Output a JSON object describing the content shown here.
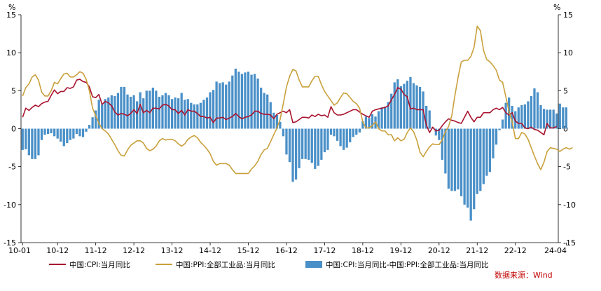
{
  "chart_data": {
    "type": "bar+line",
    "unit_left": "%",
    "unit_right": "%",
    "ylim": [
      -15,
      15
    ],
    "y_ticks": [
      15,
      10,
      5,
      0,
      -5,
      -10,
      -15
    ],
    "x_tick_labels": [
      "10-01",
      "10-12",
      "11-12",
      "12-12",
      "13-12",
      "14-12",
      "15-12",
      "16-12",
      "17-12",
      "18-12",
      "19-12",
      "20-12",
      "21-12",
      "22-12",
      "24-04"
    ],
    "x_tick_positions": [
      0,
      11,
      23,
      35,
      47,
      59,
      71,
      83,
      95,
      107,
      119,
      131,
      143,
      155,
      171
    ],
    "x_start": "2010-01",
    "x_end": "2024-04",
    "grid": false,
    "legend_position": "bottom",
    "source_note": "数据来源：Wind",
    "colors": {
      "cpi": "#A8132E",
      "ppi": "#C9A03C",
      "diff": "#4A90C8",
      "source": "#C00000"
    },
    "series": [
      {
        "name": "中国:CPI:当月同比",
        "type": "line",
        "values": [
          1.5,
          2.7,
          2.4,
          2.8,
          3.1,
          2.9,
          3.3,
          3.5,
          3.6,
          4.4,
          5.1,
          4.6,
          4.9,
          4.9,
          5.4,
          5.3,
          5.5,
          6.4,
          6.5,
          6.2,
          6.1,
          5.5,
          4.2,
          4.1,
          4.5,
          3.2,
          3.6,
          3.4,
          3.0,
          2.2,
          1.8,
          2.0,
          1.9,
          1.7,
          2.0,
          2.5,
          2.0,
          3.2,
          2.1,
          2.4,
          2.1,
          2.7,
          2.7,
          2.6,
          3.1,
          3.2,
          3.0,
          2.5,
          2.5,
          2.0,
          2.4,
          1.8,
          2.5,
          2.3,
          2.3,
          2.0,
          1.6,
          1.6,
          1.4,
          1.5,
          0.8,
          1.4,
          1.4,
          1.5,
          1.2,
          1.4,
          1.6,
          2.0,
          1.6,
          1.3,
          1.5,
          1.6,
          1.8,
          2.3,
          2.3,
          2.0,
          1.9,
          1.9,
          1.8,
          1.3,
          1.9,
          2.1,
          2.3,
          2.1,
          2.5,
          0.8,
          0.9,
          1.2,
          1.5,
          1.5,
          1.4,
          1.8,
          1.6,
          1.9,
          1.7,
          1.8,
          1.5,
          2.9,
          2.1,
          1.8,
          1.8,
          1.9,
          2.1,
          2.3,
          2.5,
          2.5,
          2.2,
          1.9,
          1.7,
          1.5,
          2.3,
          2.5,
          2.6,
          2.7,
          2.8,
          3.0,
          3.8,
          4.5,
          5.4,
          5.2,
          4.5,
          4.2,
          2.6,
          2.7,
          2.5,
          2.5,
          2.5,
          0.5,
          -0.5,
          0.2,
          -0.3,
          -0.2,
          0.4,
          0.9,
          1.3,
          1.1,
          1.0,
          0.8,
          0.7,
          1.5,
          2.3,
          1.5,
          0.9,
          1.5,
          1.5,
          2.1,
          2.1,
          2.1,
          2.5,
          2.7,
          2.5,
          2.8,
          2.1,
          1.8,
          2.1,
          1.0,
          0.7,
          0.7,
          0.1,
          0.0,
          0.2,
          -0.1,
          -0.2,
          -0.5,
          -0.8,
          0.7,
          0.1,
          0.1,
          0.3
        ],
        "color": "#A8132E"
      },
      {
        "name": "中国:PPI:全部工业品:当月同比",
        "type": "line",
        "values": [
          4.3,
          5.4,
          5.9,
          6.8,
          7.1,
          6.4,
          4.8,
          4.3,
          4.3,
          5.0,
          6.1,
          5.9,
          6.6,
          7.2,
          7.3,
          6.8,
          6.8,
          7.1,
          7.5,
          7.3,
          6.5,
          5.0,
          2.7,
          1.7,
          0.7,
          0.0,
          -0.3,
          -0.7,
          -1.4,
          -2.1,
          -2.9,
          -3.5,
          -3.6,
          -2.8,
          -2.2,
          -1.9,
          -1.6,
          -1.6,
          -1.9,
          -2.6,
          -2.9,
          -2.7,
          -2.3,
          -1.6,
          -1.3,
          -1.5,
          -1.4,
          -1.4,
          -1.6,
          -2.0,
          -2.3,
          -2.0,
          -1.4,
          -1.1,
          -0.9,
          -1.2,
          -1.8,
          -2.2,
          -2.7,
          -3.3,
          -4.3,
          -4.8,
          -4.6,
          -4.6,
          -4.6,
          -4.8,
          -5.4,
          -5.9,
          -5.9,
          -5.9,
          -5.9,
          -5.9,
          -5.3,
          -4.9,
          -4.3,
          -3.4,
          -2.8,
          -2.6,
          -1.7,
          -0.8,
          0.1,
          1.2,
          3.3,
          5.5,
          6.9,
          7.8,
          7.6,
          6.4,
          5.5,
          5.5,
          5.5,
          6.3,
          6.9,
          6.9,
          5.8,
          4.9,
          4.3,
          3.7,
          3.1,
          3.4,
          4.1,
          4.7,
          4.6,
          4.1,
          3.6,
          3.3,
          2.7,
          0.9,
          0.1,
          0.1,
          0.4,
          0.9,
          0.0,
          -0.3,
          -0.3,
          -0.8,
          -0.8,
          -1.6,
          -1.2,
          -1.6,
          -1.4,
          -0.5,
          0.1,
          -0.4,
          -1.5,
          -3.1,
          -3.7,
          -3.0,
          -2.4,
          -2.0,
          -2.1,
          -2.1,
          -1.5,
          -0.4,
          0.3,
          1.7,
          4.4,
          6.8,
          8.8,
          9.0,
          9.0,
          9.5,
          10.7,
          13.5,
          12.9,
          10.3,
          9.1,
          8.8,
          8.3,
          7.7,
          6.4,
          6.1,
          4.2,
          2.3,
          0.9,
          -1.3,
          -1.3,
          -0.5,
          -0.7,
          -1.4,
          -2.5,
          -3.6,
          -4.6,
          -5.4,
          -4.4,
          -3.0,
          -2.5,
          -2.6,
          -2.7,
          -3.0,
          -2.7,
          -2.5,
          -2.7,
          -2.5
        ],
        "color": "#C9A03C"
      },
      {
        "name": "中国:CPI:当月同比-中国:PPI:全部工业品:当月同比",
        "type": "bar",
        "values": [
          -2.8,
          -2.7,
          -3.5,
          -4.0,
          -4.0,
          -3.5,
          -1.5,
          -0.8,
          -0.7,
          -0.6,
          -1.0,
          -1.3,
          -1.7,
          -2.3,
          -1.9,
          -1.5,
          -1.3,
          -0.7,
          -1.0,
          -1.1,
          -0.4,
          0.5,
          1.5,
          2.4,
          3.8,
          3.2,
          3.9,
          4.1,
          4.4,
          4.3,
          4.7,
          5.5,
          5.5,
          4.5,
          4.2,
          4.4,
          3.6,
          4.8,
          4.0,
          5.0,
          5.0,
          5.4,
          5.0,
          4.2,
          4.4,
          4.7,
          4.4,
          3.9,
          4.1,
          4.0,
          4.7,
          3.8,
          3.9,
          3.4,
          3.2,
          3.2,
          3.4,
          3.8,
          4.1,
          4.8,
          5.1,
          6.2,
          6.0,
          6.1,
          5.8,
          6.2,
          7.0,
          7.9,
          7.5,
          7.2,
          7.4,
          7.5,
          7.1,
          7.2,
          6.6,
          5.4,
          4.7,
          4.5,
          3.5,
          2.1,
          1.8,
          0.9,
          -1.0,
          -3.4,
          -4.4,
          -7.0,
          -6.7,
          -5.2,
          -4.0,
          -4.0,
          -4.1,
          -4.5,
          -5.3,
          -4.9,
          -4.1,
          -3.1,
          -2.8,
          -0.8,
          -1.0,
          -1.6,
          -2.3,
          -2.8,
          -2.5,
          -1.8,
          -1.1,
          -0.8,
          -0.5,
          1.0,
          1.6,
          1.4,
          1.9,
          1.6,
          2.3,
          2.8,
          2.9,
          3.5,
          4.6,
          6.1,
          6.5,
          5.6,
          5.9,
          6.3,
          6.8,
          6.0,
          5.7,
          5.5,
          4.9,
          3.0,
          2.4,
          0.2,
          -0.9,
          -1.5,
          -4.1,
          -5.9,
          -7.9,
          -8.2,
          -8.2,
          -8.0,
          -8.9,
          -10.0,
          -10.4,
          -12.1,
          -10.6,
          -8.6,
          -8.2,
          -7.3,
          -6.2,
          -5.7,
          -3.9,
          -2.1,
          -0.2,
          1.2,
          3.4,
          4.1,
          3.0,
          2.3,
          2.8,
          3.1,
          3.2,
          3.6,
          4.3,
          5.3,
          4.8,
          3.1,
          2.6,
          2.5,
          2.5,
          2.5,
          2.0,
          3.3,
          2.8,
          2.8
        ],
        "color": "#4A90C8"
      }
    ]
  },
  "legend": {
    "cpi_label": "中国:CPI:当月同比",
    "ppi_label": "中国:PPI:全部工业品:当月同比",
    "diff_label": "中国:CPI:当月同比-中国:PPI:全部工业品:当月同比"
  }
}
